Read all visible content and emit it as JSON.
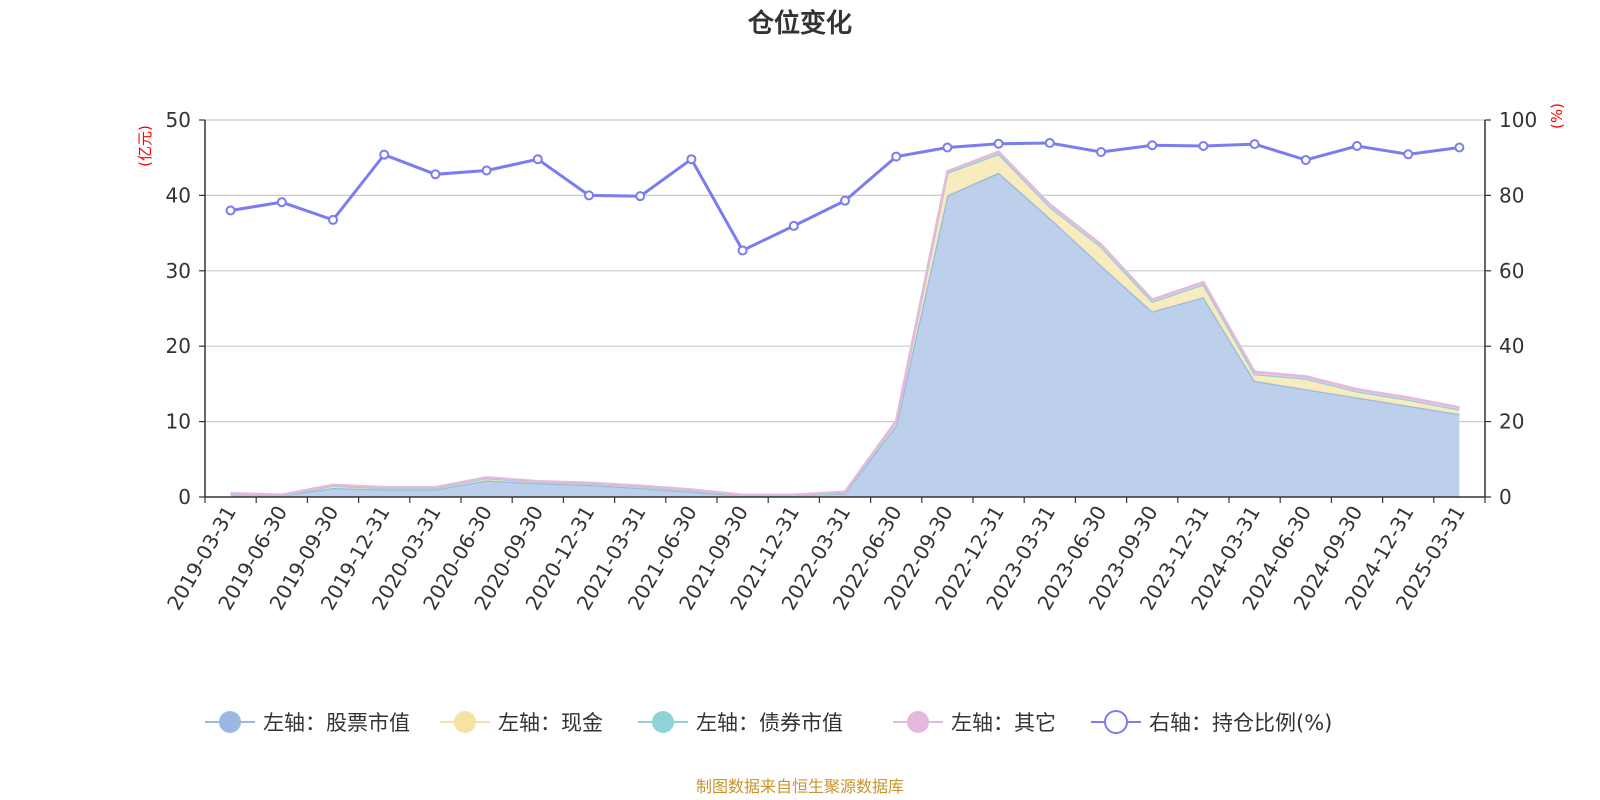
{
  "chart_data": {
    "type": "area",
    "title": "仓位变化",
    "left_axis_unit": "(亿元)",
    "right_axis_unit": "(%)",
    "ylim_left": [
      0,
      50
    ],
    "ylim_right": [
      0,
      100
    ],
    "yticks_left": [
      "0",
      "10",
      "20",
      "30",
      "40",
      "50"
    ],
    "yticks_right": [
      "0",
      "20",
      "40",
      "60",
      "80",
      "100"
    ],
    "categories": [
      "2019-03-31",
      "2019-06-30",
      "2019-09-30",
      "2019-12-31",
      "2020-03-31",
      "2020-06-30",
      "2020-09-30",
      "2020-12-31",
      "2021-03-31",
      "2021-06-30",
      "2021-09-30",
      "2021-12-31",
      "2022-03-31",
      "2022-06-30",
      "2022-09-30",
      "2022-12-31",
      "2023-03-31",
      "2023-06-30",
      "2023-09-30",
      "2023-12-31",
      "2024-03-31",
      "2024-06-30",
      "2024-09-30",
      "2024-12-31",
      "2025-03-31"
    ],
    "series": [
      {
        "name": "左轴：股票市值",
        "axis": "left",
        "color": "#9bb8e0",
        "fill": "#b8cdea",
        "values": [
          0.4,
          0.2,
          1.2,
          1.0,
          1.0,
          2.2,
          1.8,
          1.6,
          1.2,
          0.7,
          0.2,
          0.2,
          0.5,
          9.5,
          40.0,
          43.0,
          37.0,
          30.7,
          24.6,
          26.5,
          15.4,
          14.3,
          13.2,
          12.1,
          11.0
        ]
      },
      {
        "name": "左轴：现金",
        "axis": "left",
        "color": "#f6e2a1",
        "fill": "#f8ebbb",
        "values": [
          0.0,
          0.0,
          0.3,
          0.2,
          0.2,
          0.3,
          0.2,
          0.2,
          0.2,
          0.2,
          0.0,
          0.0,
          0.1,
          0.5,
          3.0,
          2.5,
          1.5,
          2.5,
          1.3,
          1.7,
          0.9,
          1.4,
          0.8,
          0.8,
          0.6
        ]
      },
      {
        "name": "左轴：债券市值",
        "axis": "left",
        "color": "#8fd3d6",
        "fill": "#a9dde0",
        "values": [
          0,
          0,
          0,
          0,
          0,
          0,
          0,
          0,
          0,
          0,
          0,
          0,
          0,
          0,
          0,
          0,
          0,
          0,
          0,
          0,
          0,
          0,
          0,
          0,
          0
        ]
      },
      {
        "name": "左轴：其它",
        "axis": "left",
        "color": "#e5b8dd",
        "fill": "#eec9e6",
        "values": [
          0.1,
          0.1,
          0.1,
          0.1,
          0.1,
          0.1,
          0.1,
          0.1,
          0.1,
          0.1,
          0.1,
          0.1,
          0.1,
          0.1,
          0.2,
          0.3,
          0.3,
          0.3,
          0.3,
          0.3,
          0.3,
          0.3,
          0.3,
          0.3,
          0.3
        ]
      },
      {
        "name": "右轴：持仓比例(%)",
        "axis": "right",
        "color": "#7b7cf0",
        "type": "line",
        "values": [
          76.0,
          78.2,
          73.5,
          90.8,
          85.6,
          86.6,
          89.6,
          80.0,
          79.8,
          89.6,
          65.4,
          71.9,
          78.6,
          90.3,
          92.7,
          93.7,
          93.9,
          91.5,
          93.3,
          93.1,
          93.6,
          89.4,
          93.1,
          90.9,
          92.7
        ]
      }
    ],
    "grid": true,
    "legend_position": "bottom"
  },
  "source_note": "制图数据来自恒生聚源数据库"
}
